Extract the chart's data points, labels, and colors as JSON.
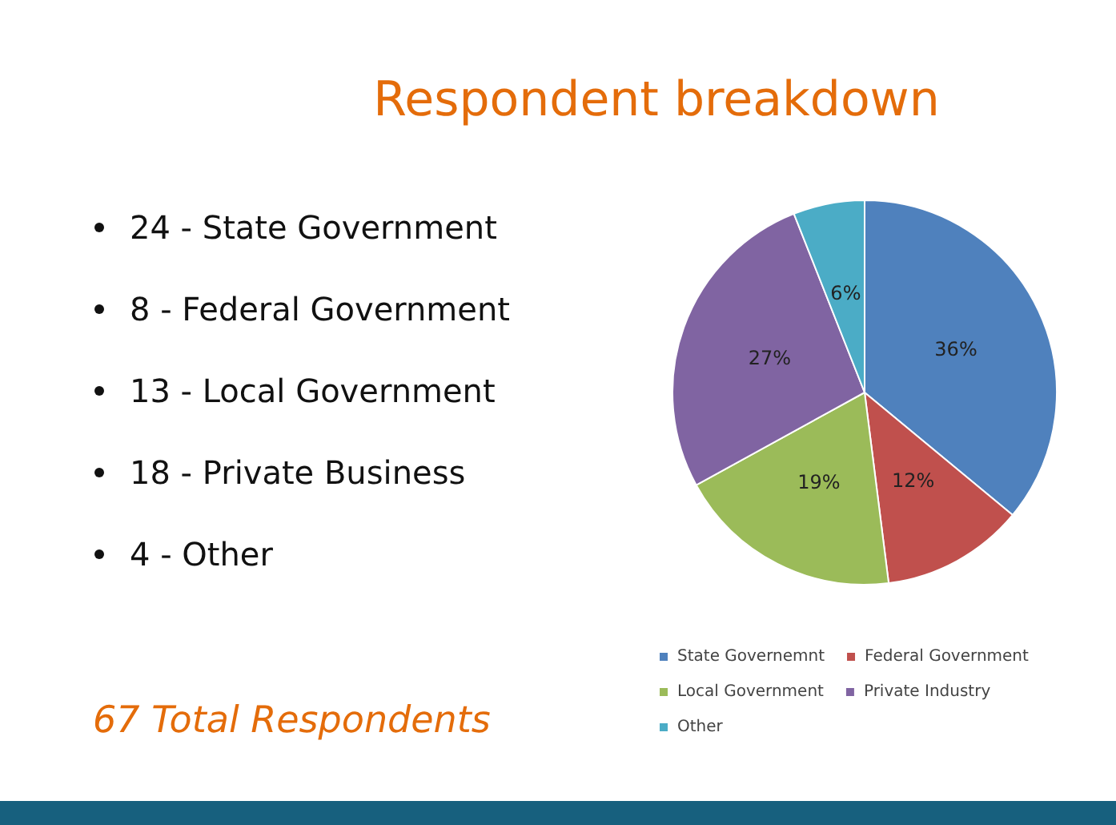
{
  "chart_data": {
    "type": "pie",
    "title": "Respondent breakdown",
    "categories": [
      "State Governemnt",
      "Federal Government",
      "Local Government",
      "Private Industry",
      "Other"
    ],
    "values": [
      36,
      12,
      19,
      27,
      6
    ],
    "colors": [
      "#4f81bd",
      "#c0504d",
      "#9bbb59",
      "#8064a2",
      "#4bacc6"
    ],
    "value_labels": [
      "36%",
      "12%",
      "19%",
      "27%",
      "6%"
    ],
    "legend": "bottom",
    "annotations": [
      "24 - State Government",
      "8 - Federal Government",
      "13 - Local Government",
      "18 - Private Business",
      "4 - Other",
      "67 Total Respondents"
    ]
  }
}
